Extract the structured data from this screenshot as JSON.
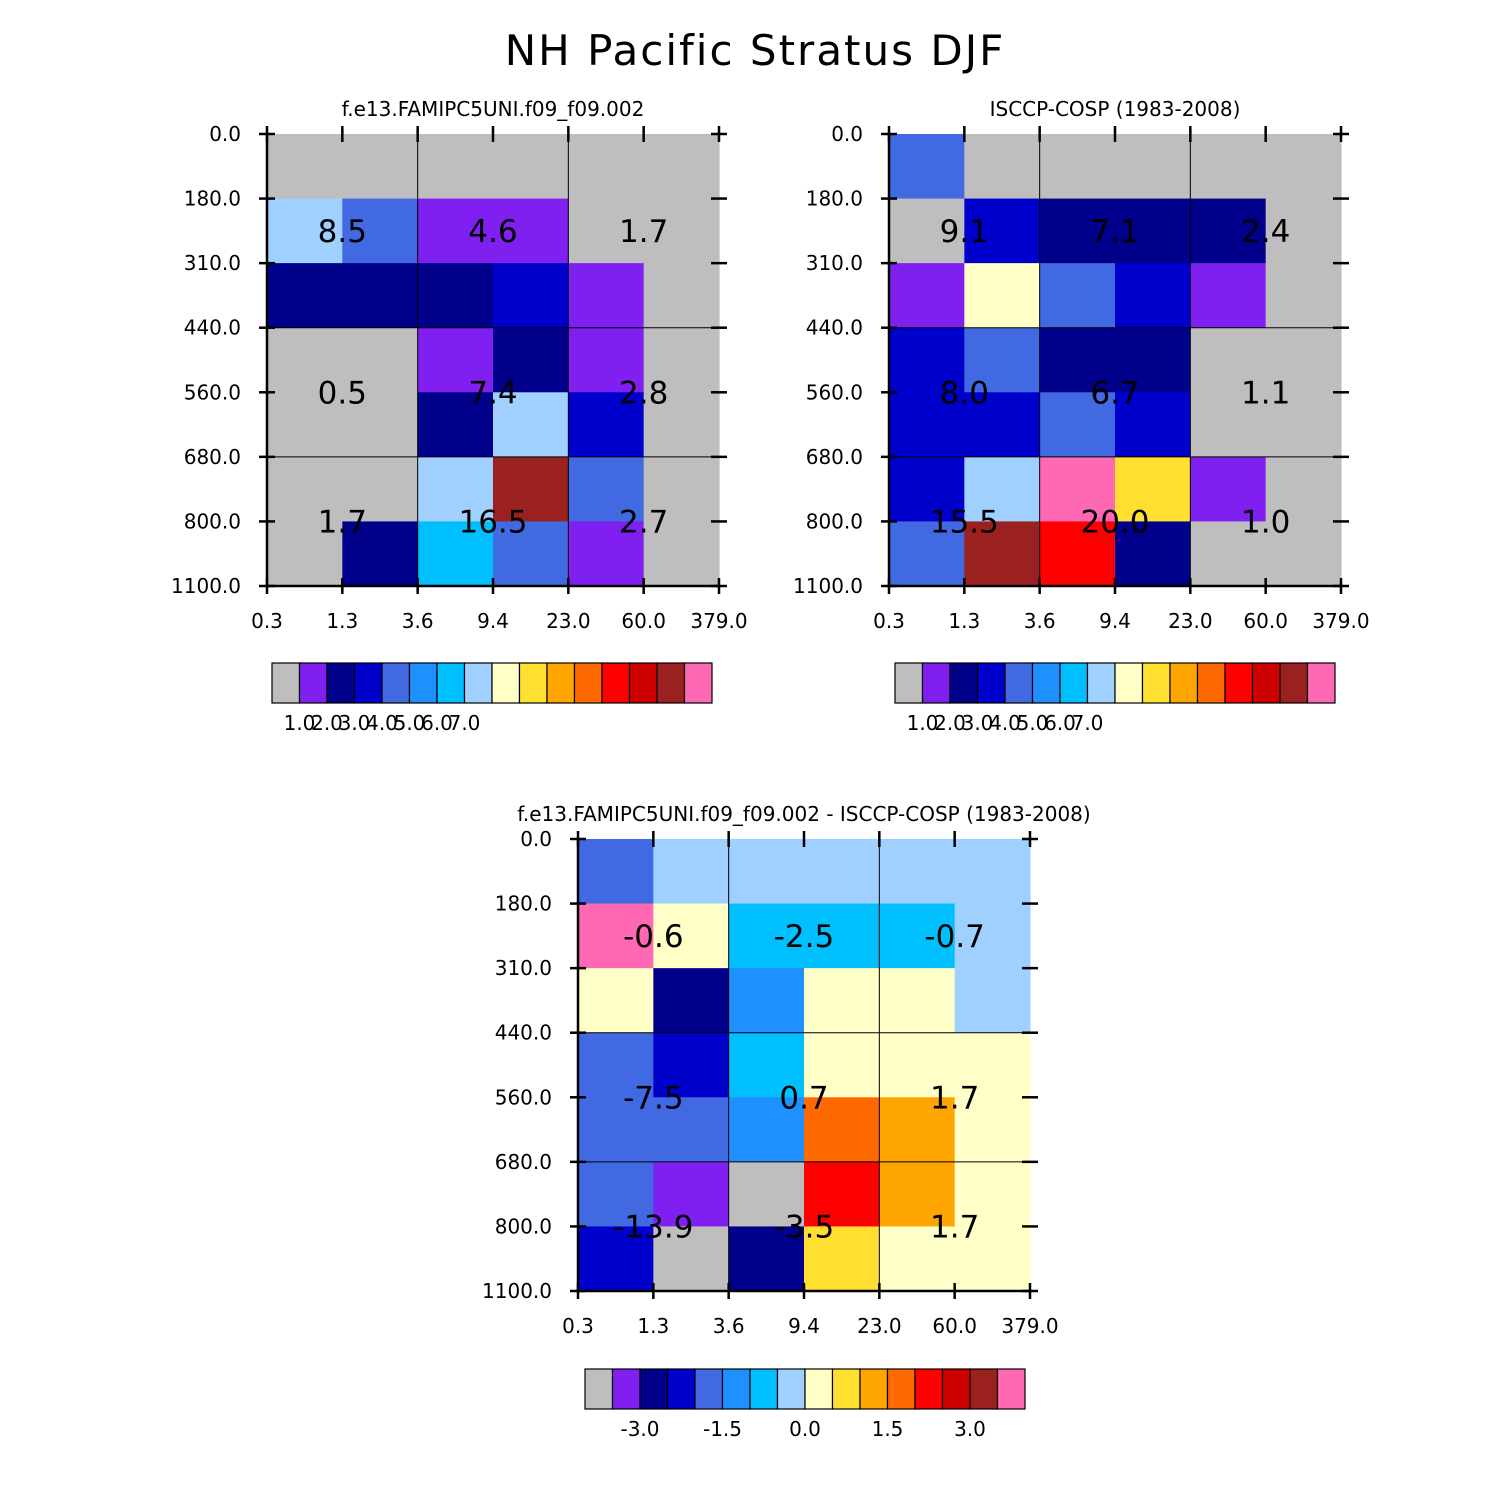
{
  "title": "NH Pacific Stratus DJF",
  "axes": {
    "x_ticks": [
      "0.3",
      "1.3",
      "3.6",
      "9.4",
      "23.0",
      "60.0",
      "379.0"
    ],
    "y_ticks": [
      "0.0",
      "180.0",
      "310.0",
      "440.0",
      "560.0",
      "680.0",
      "800.0",
      "1100.0"
    ]
  },
  "palette": [
    "#bebebe",
    "#8020f0",
    "#00008b",
    "#0000cd",
    "#4169e1",
    "#1e90ff",
    "#00bfff",
    "#a0d0ff",
    "#ffffc8",
    "#ffe030",
    "#ffa500",
    "#ff6a00",
    "#ff0000",
    "#cd0000",
    "#9b2020",
    "#ff69b4"
  ],
  "chart_data": [
    {
      "type": "heatmap",
      "title": "f.e13.FAMIPC5UNI.f09_f09.002",
      "x_edges": [
        0.3,
        1.3,
        3.6,
        9.4,
        23.0,
        60.0,
        379.0
      ],
      "y_edges": [
        0.0,
        180.0,
        310.0,
        440.0,
        560.0,
        680.0,
        800.0,
        1100.0
      ],
      "y_axis": "pressure, increasing downward",
      "cell_color_index": [
        [
          0,
          0,
          0,
          0,
          0,
          0
        ],
        [
          7,
          4,
          1,
          1,
          0,
          0
        ],
        [
          2,
          2,
          2,
          3,
          1,
          0
        ],
        [
          0,
          0,
          1,
          2,
          1,
          0
        ],
        [
          0,
          0,
          2,
          7,
          3,
          0
        ],
        [
          0,
          0,
          7,
          14,
          4,
          0
        ],
        [
          0,
          2,
          6,
          4,
          1,
          0
        ]
      ],
      "box_labels": [
        {
          "value": "8.5",
          "x_range": [
            0.3,
            3.6
          ],
          "y_range": [
            0.0,
            440.0
          ]
        },
        {
          "value": "4.6",
          "x_range": [
            3.6,
            23.0
          ],
          "y_range": [
            0.0,
            440.0
          ]
        },
        {
          "value": "1.7",
          "x_range": [
            23.0,
            379.0
          ],
          "y_range": [
            0.0,
            440.0
          ]
        },
        {
          "value": "0.5",
          "x_range": [
            0.3,
            3.6
          ],
          "y_range": [
            440.0,
            680.0
          ]
        },
        {
          "value": "7.4",
          "x_range": [
            3.6,
            23.0
          ],
          "y_range": [
            440.0,
            680.0
          ]
        },
        {
          "value": "2.8",
          "x_range": [
            23.0,
            379.0
          ],
          "y_range": [
            440.0,
            680.0
          ]
        },
        {
          "value": "1.7",
          "x_range": [
            0.3,
            3.6
          ],
          "y_range": [
            680.0,
            1100.0
          ]
        },
        {
          "value": "16.5",
          "x_range": [
            3.6,
            23.0
          ],
          "y_range": [
            680.0,
            1100.0
          ]
        },
        {
          "value": "2.7",
          "x_range": [
            23.0,
            379.0
          ],
          "y_range": [
            680.0,
            1100.0
          ]
        }
      ],
      "colorbar": {
        "labels": [
          "1.0",
          "2.0",
          "3.0",
          "4.0",
          "5.0",
          "6.0",
          "7.0"
        ]
      }
    },
    {
      "type": "heatmap",
      "title": "ISCCP-COSP (1983-2008)",
      "x_edges": [
        0.3,
        1.3,
        3.6,
        9.4,
        23.0,
        60.0,
        379.0
      ],
      "y_edges": [
        0.0,
        180.0,
        310.0,
        440.0,
        560.0,
        680.0,
        800.0,
        1100.0
      ],
      "y_axis": "pressure, increasing downward",
      "cell_color_index": [
        [
          4,
          0,
          0,
          0,
          0,
          0
        ],
        [
          0,
          3,
          2,
          2,
          2,
          0
        ],
        [
          1,
          8,
          4,
          3,
          1,
          0
        ],
        [
          3,
          4,
          2,
          2,
          0,
          0
        ],
        [
          3,
          3,
          4,
          3,
          0,
          0
        ],
        [
          3,
          7,
          15,
          9,
          1,
          0
        ],
        [
          4,
          14,
          12,
          2,
          0,
          0
        ]
      ],
      "box_labels": [
        {
          "value": "9.1",
          "x_range": [
            0.3,
            3.6
          ],
          "y_range": [
            0.0,
            440.0
          ]
        },
        {
          "value": "7.1",
          "x_range": [
            3.6,
            23.0
          ],
          "y_range": [
            0.0,
            440.0
          ]
        },
        {
          "value": "2.4",
          "x_range": [
            23.0,
            379.0
          ],
          "y_range": [
            0.0,
            440.0
          ]
        },
        {
          "value": "8.0",
          "x_range": [
            0.3,
            3.6
          ],
          "y_range": [
            440.0,
            680.0
          ]
        },
        {
          "value": "6.7",
          "x_range": [
            3.6,
            23.0
          ],
          "y_range": [
            440.0,
            680.0
          ]
        },
        {
          "value": "1.1",
          "x_range": [
            23.0,
            379.0
          ],
          "y_range": [
            440.0,
            680.0
          ]
        },
        {
          "value": "15.5",
          "x_range": [
            0.3,
            3.6
          ],
          "y_range": [
            680.0,
            1100.0
          ]
        },
        {
          "value": "20.0",
          "x_range": [
            3.6,
            23.0
          ],
          "y_range": [
            680.0,
            1100.0
          ]
        },
        {
          "value": "1.0",
          "x_range": [
            23.0,
            379.0
          ],
          "y_range": [
            680.0,
            1100.0
          ]
        }
      ],
      "colorbar": {
        "labels": [
          "1.0",
          "2.0",
          "3.0",
          "4.0",
          "5.0",
          "6.0",
          "7.0"
        ]
      }
    },
    {
      "type": "heatmap",
      "title": "f.e13.FAMIPC5UNI.f09_f09.002 - ISCCP-COSP (1983-2008)",
      "x_edges": [
        0.3,
        1.3,
        3.6,
        9.4,
        23.0,
        60.0,
        379.0
      ],
      "y_edges": [
        0.0,
        180.0,
        310.0,
        440.0,
        560.0,
        680.0,
        800.0,
        1100.0
      ],
      "y_axis": "pressure, increasing downward",
      "cell_color_index": [
        [
          4,
          7,
          7,
          7,
          7,
          7
        ],
        [
          15,
          8,
          6,
          6,
          6,
          7
        ],
        [
          8,
          2,
          5,
          8,
          8,
          7
        ],
        [
          4,
          3,
          6,
          8,
          8,
          8
        ],
        [
          4,
          4,
          5,
          11,
          10,
          8
        ],
        [
          4,
          1,
          0,
          12,
          10,
          8
        ],
        [
          3,
          0,
          2,
          9,
          8,
          8
        ]
      ],
      "box_labels": [
        {
          "value": "-0.6",
          "x_range": [
            0.3,
            3.6
          ],
          "y_range": [
            0.0,
            440.0
          ]
        },
        {
          "value": "-2.5",
          "x_range": [
            3.6,
            23.0
          ],
          "y_range": [
            0.0,
            440.0
          ]
        },
        {
          "value": "-0.7",
          "x_range": [
            23.0,
            379.0
          ],
          "y_range": [
            0.0,
            440.0
          ]
        },
        {
          "value": "-7.5",
          "x_range": [
            0.3,
            3.6
          ],
          "y_range": [
            440.0,
            680.0
          ]
        },
        {
          "value": "0.7",
          "x_range": [
            3.6,
            23.0
          ],
          "y_range": [
            440.0,
            680.0
          ]
        },
        {
          "value": "1.7",
          "x_range": [
            23.0,
            379.0
          ],
          "y_range": [
            440.0,
            680.0
          ]
        },
        {
          "value": "-13.9",
          "x_range": [
            0.3,
            3.6
          ],
          "y_range": [
            680.0,
            1100.0
          ]
        },
        {
          "value": "-3.5",
          "x_range": [
            3.6,
            23.0
          ],
          "y_range": [
            680.0,
            1100.0
          ]
        },
        {
          "value": "1.7",
          "x_range": [
            23.0,
            379.0
          ],
          "y_range": [
            680.0,
            1100.0
          ]
        }
      ],
      "colorbar": {
        "labels": [
          "-3.0",
          "-1.5",
          "0.0",
          "1.5",
          "3.0"
        ]
      }
    }
  ]
}
